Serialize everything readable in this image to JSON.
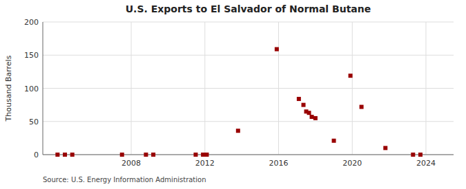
{
  "chart_data": {
    "type": "scatter",
    "title": "U.S. Exports to El Salvador of Normal Butane",
    "ylabel": "Thousand Barrels",
    "source": "Source: U.S. Energy Information Administration",
    "color": "#990000",
    "marker": "square",
    "grid": true,
    "xlim": [
      2003.2,
      2025.5
    ],
    "ylim": [
      0,
      200
    ],
    "xticks": [
      2008,
      2012,
      2016,
      2020,
      2024
    ],
    "yticks": [
      0,
      50,
      100,
      150,
      200
    ],
    "x": [
      2004.0,
      2004.4,
      2004.8,
      2007.5,
      2008.8,
      2009.2,
      2011.5,
      2011.9,
      2012.1,
      2013.8,
      2015.9,
      2017.1,
      2017.35,
      2017.5,
      2017.65,
      2017.8,
      2018.0,
      2019.0,
      2019.9,
      2020.5,
      2021.8,
      2023.3,
      2023.7
    ],
    "values": [
      0,
      0,
      0,
      0,
      0,
      0,
      0,
      0,
      0,
      36,
      159,
      84,
      75,
      65,
      63,
      57,
      55,
      21,
      119,
      72,
      10,
      0,
      0
    ]
  }
}
